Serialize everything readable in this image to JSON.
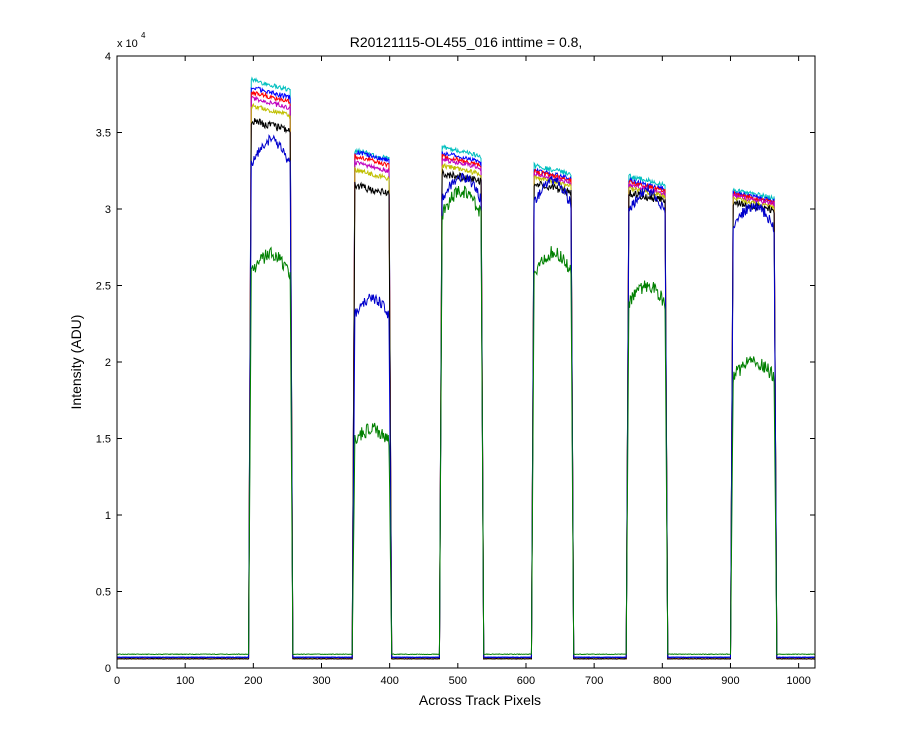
{
  "chart_data": {
    "type": "line",
    "title": "R20121115-OL455_016 inttime = 0.8,",
    "xlabel": "Across Track Pixels",
    "ylabel": "Intensity (ADU)",
    "y_exponent_prefix": "x 10",
    "y_exponent_power": "4",
    "xlim": [
      0,
      1024
    ],
    "ylim": [
      0,
      40000
    ],
    "x_ticks": [
      0,
      100,
      200,
      300,
      400,
      500,
      600,
      700,
      800,
      900,
      1000
    ],
    "x_tick_labels": [
      "0",
      "100",
      "200",
      "300",
      "400",
      "500",
      "600",
      "700",
      "800",
      "900",
      "1000"
    ],
    "y_ticks": [
      0,
      5000,
      10000,
      15000,
      20000,
      25000,
      30000,
      35000,
      40000
    ],
    "y_tick_labels": [
      "0",
      "0.5",
      "1",
      "1.5",
      "2",
      "2.5",
      "3",
      "3.5",
      "4"
    ],
    "baseline": 700,
    "plateaus": [
      {
        "x_start": 193,
        "x_end": 258
      },
      {
        "x_start": 345,
        "x_end": 403
      },
      {
        "x_start": 473,
        "x_end": 538
      },
      {
        "x_start": 608,
        "x_end": 670
      },
      {
        "x_start": 747,
        "x_end": 808
      },
      {
        "x_start": 900,
        "x_end": 968
      }
    ],
    "series": [
      {
        "name": "cyan",
        "color": "#00bfbf",
        "baseline": 700,
        "levels": [
          38500,
          33900,
          34100,
          32900,
          32200,
          31300
        ],
        "noise": 150
      },
      {
        "name": "blue",
        "color": "#0000ff",
        "baseline": 700,
        "levels": [
          38000,
          33800,
          33700,
          32600,
          31900,
          31100
        ],
        "noise": 150
      },
      {
        "name": "red",
        "color": "#ff0000",
        "baseline": 600,
        "levels": [
          37700,
          33500,
          33500,
          32500,
          31800,
          31000
        ],
        "noise": 150
      },
      {
        "name": "magenta",
        "color": "#bf00bf",
        "baseline": 600,
        "levels": [
          37300,
          33100,
          33300,
          32300,
          31600,
          30900
        ],
        "noise": 150
      },
      {
        "name": "olive",
        "color": "#bfbf00",
        "baseline": 600,
        "levels": [
          36800,
          32600,
          32900,
          32100,
          31400,
          30700
        ],
        "noise": 150
      },
      {
        "name": "black",
        "color": "#000000",
        "baseline": 600,
        "levels": [
          35800,
          31600,
          32400,
          31700,
          31100,
          30500
        ],
        "noise": 250
      },
      {
        "name": "navy",
        "color": "#0000cc",
        "baseline": 700,
        "levels": [
          33800,
          23700,
          31500,
          31200,
          30600,
          29600
        ],
        "noise": 350
      },
      {
        "name": "green",
        "color": "#008000",
        "baseline": 900,
        "levels": [
          26500,
          15300,
          30500,
          26600,
          24500,
          19600
        ],
        "noise": 450
      }
    ]
  }
}
